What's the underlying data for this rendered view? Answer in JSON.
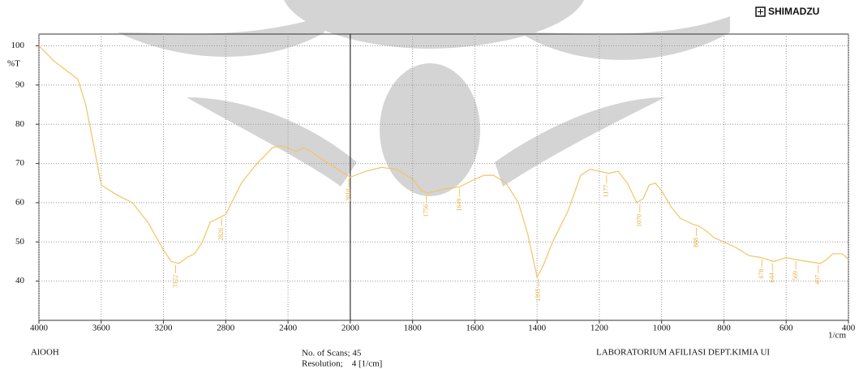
{
  "chart_data": {
    "type": "line",
    "brand": "SHIMADZU",
    "ylabel": "%T",
    "xlabel": "1/cm",
    "sample": "AlOOH",
    "scans_label": "No. of Scans; 45",
    "resolution_label": "Resolution;    4 [1/cm]",
    "lab_label": "LABORATORIUM AFILIASI DEPT.KIMIA UI",
    "color": "#f4c363",
    "grid": true,
    "xbreak": 2000,
    "xlim": [
      4000,
      400
    ],
    "xticks": [
      4000,
      3600,
      3200,
      2800,
      2400,
      2000,
      1800,
      1600,
      1400,
      1200,
      1000,
      800,
      600,
      400
    ],
    "ylim": [
      30,
      103
    ],
    "yticks": [
      40,
      50,
      60,
      70,
      80,
      90,
      100
    ],
    "x": [
      4000,
      3900,
      3800,
      3750,
      3700,
      3650,
      3600,
      3500,
      3400,
      3300,
      3200,
      3150,
      3100,
      3050,
      3000,
      2950,
      2900,
      2850,
      2800,
      2750,
      2700,
      2600,
      2500,
      2450,
      2400,
      2350,
      2300,
      2250,
      2200,
      2100,
      2000,
      1950,
      1900,
      1850,
      1800,
      1770,
      1750,
      1720,
      1700,
      1650,
      1600,
      1570,
      1540,
      1500,
      1460,
      1430,
      1400,
      1380,
      1350,
      1300,
      1260,
      1230,
      1200,
      1170,
      1140,
      1110,
      1080,
      1060,
      1040,
      1020,
      1000,
      970,
      940,
      900,
      880,
      860,
      830,
      800,
      760,
      720,
      680,
      640,
      600,
      570,
      530,
      490,
      470,
      450,
      420,
      400
    ],
    "values": [
      100,
      96,
      93,
      91.5,
      85,
      75,
      64.5,
      62,
      60,
      55,
      48,
      45,
      44.5,
      46,
      47,
      50,
      55,
      56,
      57,
      61,
      65,
      70,
      74,
      74.5,
      74,
      73,
      74,
      73,
      71.5,
      69,
      66.5,
      68,
      69,
      68.5,
      66,
      63,
      62.5,
      63,
      63.5,
      64,
      66,
      67,
      67,
      65,
      60,
      52,
      41,
      44,
      50,
      58,
      67,
      68.5,
      68,
      67.5,
      68,
      65,
      60,
      61,
      64.5,
      65,
      63,
      59,
      56,
      54.5,
      54,
      53,
      51,
      50,
      48.5,
      46.5,
      46,
      45,
      46,
      45.5,
      45,
      44.5,
      45.5,
      47,
      47,
      45.5
    ],
    "peaks": [
      {
        "x": 3122,
        "y": 44.5
      },
      {
        "x": 2826,
        "y": 56.5
      },
      {
        "x": 2010,
        "y": 66.5
      },
      {
        "x": 1756,
        "y": 62.5
      },
      {
        "x": 1649,
        "y": 64
      },
      {
        "x": 1395,
        "y": 41
      },
      {
        "x": 1177,
        "y": 67.5
      },
      {
        "x": 1070,
        "y": 60
      },
      {
        "x": 888,
        "y": 54
      },
      {
        "x": 678,
        "y": 46
      },
      {
        "x": 644,
        "y": 45
      },
      {
        "x": 569,
        "y": 45.5
      },
      {
        "x": 497,
        "y": 44.5
      }
    ]
  }
}
